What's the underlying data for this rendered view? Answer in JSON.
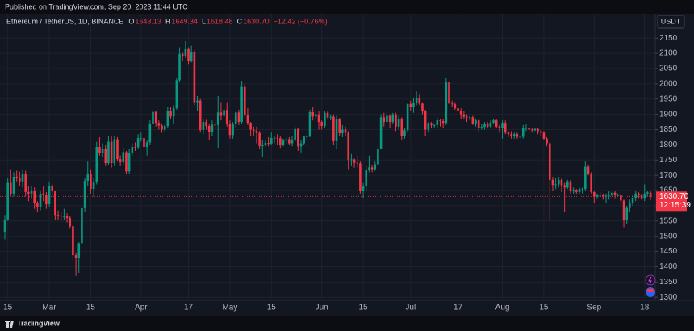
{
  "header": "Published on TradingView.com, Sep 20, 2023 11:44 UTC",
  "footer": "TradingView",
  "chart_data": {
    "type": "candlestick",
    "title": "Ethereum / TetherUS, 1D, BINANCE",
    "legend": [
      {
        "k": "O",
        "v": "1643.13"
      },
      {
        "k": "H",
        "v": "1649.34"
      },
      {
        "k": "L",
        "v": "1618.48"
      },
      {
        "k": "C",
        "v": "1630.70"
      }
    ],
    "change": "−12.42 (−0.76%)",
    "currency": "USDT",
    "last_price": "1630.70",
    "countdown": "12:15:39",
    "up_color": "#089981",
    "down_color": "#f23645",
    "grid": true,
    "ylim": [
      1290,
      2230
    ],
    "yticks": [
      1300,
      1350,
      1400,
      1450,
      1500,
      1550,
      1600,
      1650,
      1700,
      1750,
      1800,
      1850,
      1900,
      1950,
      2000,
      2050,
      2100,
      2150
    ],
    "categories": [
      null,
      "15",
      null,
      null,
      null,
      null,
      null,
      null,
      null,
      null,
      null,
      null,
      null,
      null,
      null,
      "Mar",
      null,
      null,
      null,
      null,
      null,
      null,
      null,
      null,
      null,
      null,
      null,
      null,
      null,
      "15",
      null,
      null,
      null,
      null,
      null,
      null,
      null,
      null,
      null,
      null,
      null,
      null,
      null,
      null,
      null,
      null,
      "Apr",
      null,
      null,
      null,
      null,
      null,
      null,
      null,
      null,
      null,
      null,
      null,
      null,
      null,
      null,
      null,
      "17",
      null,
      null,
      null,
      null,
      null,
      null,
      null,
      null,
      null,
      null,
      null,
      null,
      null,
      "May",
      null,
      null,
      null,
      null,
      null,
      null,
      null,
      null,
      null,
      null,
      null,
      null,
      null,
      "15",
      null,
      null,
      null,
      null,
      null,
      null,
      null,
      null,
      null,
      null,
      null,
      null,
      null,
      null,
      null,
      null,
      "Jun",
      null,
      null,
      null,
      null,
      null,
      null,
      null,
      null,
      null,
      null,
      null,
      null,
      null,
      "15",
      null,
      null,
      null,
      null,
      null,
      null,
      null,
      null,
      null,
      null,
      null,
      null,
      null,
      null,
      null,
      "Jul",
      null,
      null,
      null,
      null,
      null,
      null,
      null,
      null,
      null,
      null,
      null,
      null,
      null,
      null,
      null,
      "17",
      null,
      null,
      null,
      null,
      null,
      null,
      null,
      null,
      null,
      null,
      null,
      null,
      null,
      null,
      "Aug",
      null,
      null,
      null,
      null,
      null,
      null,
      null,
      null,
      null,
      null,
      null,
      null,
      null,
      "15",
      null,
      null,
      null,
      null,
      null,
      null,
      null,
      null,
      null,
      null,
      null,
      null,
      null,
      null,
      null,
      null,
      "Sep",
      null,
      null,
      null,
      null,
      null,
      null,
      null,
      null,
      null,
      null,
      null,
      null,
      null,
      null,
      null,
      null,
      "18",
      null,
      null
    ],
    "ohlc": [
      [
        1515,
        1570,
        1490,
        1555
      ],
      [
        1555,
        1690,
        1550,
        1675
      ],
      [
        1675,
        1720,
        1630,
        1640
      ],
      [
        1640,
        1710,
        1630,
        1695
      ],
      [
        1695,
        1715,
        1680,
        1690
      ],
      [
        1690,
        1712,
        1665,
        1680
      ],
      [
        1680,
        1720,
        1660,
        1705
      ],
      [
        1705,
        1715,
        1630,
        1645
      ],
      [
        1645,
        1665,
        1615,
        1640
      ],
      [
        1640,
        1665,
        1625,
        1650
      ],
      [
        1650,
        1660,
        1590,
        1608
      ],
      [
        1608,
        1615,
        1580,
        1595
      ],
      [
        1595,
        1650,
        1585,
        1640
      ],
      [
        1640,
        1665,
        1615,
        1635
      ],
      [
        1635,
        1645,
        1590,
        1605
      ],
      [
        1605,
        1680,
        1595,
        1664
      ],
      [
        1664,
        1672,
        1630,
        1648
      ],
      [
        1648,
        1650,
        1555,
        1570
      ],
      [
        1570,
        1585,
        1555,
        1567
      ],
      [
        1567,
        1580,
        1555,
        1565
      ],
      [
        1565,
        1590,
        1555,
        1565
      ],
      [
        1565,
        1575,
        1545,
        1560
      ],
      [
        1560,
        1568,
        1525,
        1533
      ],
      [
        1533,
        1540,
        1420,
        1438
      ],
      [
        1438,
        1445,
        1370,
        1430
      ],
      [
        1430,
        1480,
        1380,
        1477
      ],
      [
        1477,
        1600,
        1470,
        1592
      ],
      [
        1592,
        1690,
        1580,
        1682
      ],
      [
        1682,
        1745,
        1665,
        1706
      ],
      [
        1706,
        1720,
        1640,
        1655
      ],
      [
        1655,
        1690,
        1630,
        1677
      ],
      [
        1677,
        1810,
        1670,
        1793
      ],
      [
        1793,
        1825,
        1765,
        1772
      ],
      [
        1772,
        1805,
        1760,
        1788
      ],
      [
        1788,
        1800,
        1730,
        1740
      ],
      [
        1740,
        1830,
        1735,
        1810
      ],
      [
        1810,
        1830,
        1725,
        1740
      ],
      [
        1740,
        1830,
        1730,
        1818
      ],
      [
        1818,
        1825,
        1745,
        1753
      ],
      [
        1753,
        1765,
        1730,
        1743
      ],
      [
        1743,
        1790,
        1735,
        1776
      ],
      [
        1776,
        1780,
        1705,
        1713
      ],
      [
        1713,
        1785,
        1705,
        1774
      ],
      [
        1774,
        1805,
        1765,
        1793
      ],
      [
        1793,
        1808,
        1780,
        1792
      ],
      [
        1792,
        1835,
        1785,
        1822
      ],
      [
        1822,
        1840,
        1810,
        1822
      ],
      [
        1822,
        1828,
        1785,
        1793
      ],
      [
        1793,
        1815,
        1765,
        1808
      ],
      [
        1808,
        1880,
        1800,
        1868
      ],
      [
        1868,
        1920,
        1860,
        1908
      ],
      [
        1908,
        1912,
        1860,
        1872
      ],
      [
        1872,
        1880,
        1850,
        1863
      ],
      [
        1863,
        1870,
        1840,
        1850
      ],
      [
        1850,
        1870,
        1842,
        1862
      ],
      [
        1862,
        1925,
        1855,
        1912
      ],
      [
        1912,
        1925,
        1885,
        1893
      ],
      [
        1893,
        1930,
        1870,
        1920
      ],
      [
        1920,
        2020,
        1915,
        2012
      ],
      [
        2012,
        2120,
        2005,
        2098
      ],
      [
        2098,
        2105,
        2075,
        2092
      ],
      [
        2092,
        2140,
        2085,
        2114
      ],
      [
        2114,
        2120,
        2065,
        2075
      ],
      [
        2075,
        2125,
        2070,
        2103
      ],
      [
        2103,
        2110,
        1930,
        1940
      ],
      [
        1940,
        1960,
        1910,
        1945
      ],
      [
        1945,
        1950,
        1840,
        1849
      ],
      [
        1849,
        1885,
        1835,
        1875
      ],
      [
        1875,
        1882,
        1850,
        1862
      ],
      [
        1862,
        1870,
        1815,
        1841
      ],
      [
        1841,
        1880,
        1830,
        1866
      ],
      [
        1866,
        1880,
        1850,
        1865
      ],
      [
        1865,
        1960,
        1790,
        1906
      ],
      [
        1906,
        1940,
        1880,
        1895
      ],
      [
        1895,
        1920,
        1885,
        1914
      ],
      [
        1914,
        1940,
        1860,
        1870
      ],
      [
        1870,
        1880,
        1820,
        1832
      ],
      [
        1832,
        1875,
        1820,
        1870
      ],
      [
        1870,
        1910,
        1855,
        1906
      ],
      [
        1906,
        1915,
        1865,
        1875
      ],
      [
        1875,
        2010,
        1870,
        1990
      ],
      [
        1990,
        2000,
        1890,
        1897
      ],
      [
        1897,
        1920,
        1865,
        1872
      ],
      [
        1872,
        1875,
        1830,
        1850
      ],
      [
        1850,
        1860,
        1830,
        1846
      ],
      [
        1846,
        1860,
        1805,
        1839
      ],
      [
        1839,
        1845,
        1785,
        1796
      ],
      [
        1796,
        1815,
        1760,
        1801
      ],
      [
        1801,
        1815,
        1795,
        1806
      ],
      [
        1806,
        1825,
        1795,
        1804
      ],
      [
        1804,
        1840,
        1800,
        1822
      ],
      [
        1822,
        1830,
        1805,
        1823
      ],
      [
        1823,
        1835,
        1800,
        1822
      ],
      [
        1822,
        1828,
        1790,
        1800
      ],
      [
        1800,
        1820,
        1795,
        1814
      ],
      [
        1814,
        1825,
        1805,
        1818
      ],
      [
        1818,
        1825,
        1800,
        1805
      ],
      [
        1805,
        1830,
        1795,
        1817
      ],
      [
        1817,
        1860,
        1810,
        1852
      ],
      [
        1852,
        1855,
        1780,
        1795
      ],
      [
        1795,
        1815,
        1775,
        1805
      ],
      [
        1805,
        1830,
        1800,
        1827
      ],
      [
        1827,
        1835,
        1815,
        1827
      ],
      [
        1827,
        1915,
        1825,
        1907
      ],
      [
        1907,
        1925,
        1880,
        1893
      ],
      [
        1893,
        1915,
        1885,
        1900
      ],
      [
        1900,
        1910,
        1850,
        1875
      ],
      [
        1875,
        1880,
        1850,
        1862
      ],
      [
        1862,
        1910,
        1855,
        1905
      ],
      [
        1905,
        1910,
        1885,
        1890
      ],
      [
        1890,
        1900,
        1880,
        1892
      ],
      [
        1892,
        1900,
        1800,
        1812
      ],
      [
        1812,
        1895,
        1785,
        1883
      ],
      [
        1883,
        1888,
        1830,
        1838
      ],
      [
        1838,
        1865,
        1825,
        1850
      ],
      [
        1850,
        1860,
        1830,
        1840
      ],
      [
        1840,
        1845,
        1720,
        1750
      ],
      [
        1750,
        1770,
        1730,
        1752
      ],
      [
        1752,
        1755,
        1725,
        1741
      ],
      [
        1741,
        1765,
        1725,
        1739
      ],
      [
        1739,
        1745,
        1640,
        1650
      ],
      [
        1650,
        1675,
        1626,
        1665
      ],
      [
        1665,
        1730,
        1650,
        1718
      ],
      [
        1718,
        1765,
        1710,
        1726
      ],
      [
        1726,
        1735,
        1710,
        1720
      ],
      [
        1720,
        1745,
        1715,
        1736
      ],
      [
        1736,
        1795,
        1730,
        1788
      ],
      [
        1788,
        1900,
        1785,
        1890
      ],
      [
        1890,
        1905,
        1860,
        1875
      ],
      [
        1875,
        1915,
        1865,
        1895
      ],
      [
        1895,
        1900,
        1855,
        1875
      ],
      [
        1875,
        1905,
        1870,
        1900
      ],
      [
        1900,
        1905,
        1845,
        1860
      ],
      [
        1860,
        1895,
        1850,
        1886
      ],
      [
        1886,
        1890,
        1815,
        1828
      ],
      [
        1828,
        1855,
        1820,
        1848
      ],
      [
        1848,
        1935,
        1840,
        1934
      ],
      [
        1934,
        1945,
        1910,
        1925
      ],
      [
        1925,
        1955,
        1905,
        1938
      ],
      [
        1938,
        1975,
        1930,
        1955
      ],
      [
        1955,
        1965,
        1930,
        1935
      ],
      [
        1935,
        1940,
        1900,
        1910
      ],
      [
        1910,
        1915,
        1830,
        1850
      ],
      [
        1850,
        1875,
        1840,
        1871
      ],
      [
        1871,
        1875,
        1855,
        1865
      ],
      [
        1865,
        1870,
        1855,
        1865
      ],
      [
        1865,
        1890,
        1855,
        1880
      ],
      [
        1880,
        1885,
        1860,
        1878
      ],
      [
        1878,
        1885,
        1855,
        1872
      ],
      [
        1872,
        2020,
        1865,
        2005
      ],
      [
        2005,
        2030,
        1925,
        1935
      ],
      [
        1935,
        1945,
        1925,
        1933
      ],
      [
        1933,
        1940,
        1915,
        1920
      ],
      [
        1920,
        1925,
        1880,
        1910
      ],
      [
        1910,
        1920,
        1885,
        1900
      ],
      [
        1900,
        1910,
        1885,
        1892
      ],
      [
        1892,
        1900,
        1875,
        1890
      ],
      [
        1890,
        1895,
        1880,
        1890
      ],
      [
        1890,
        1895,
        1865,
        1870
      ],
      [
        1870,
        1885,
        1860,
        1880
      ],
      [
        1880,
        1885,
        1845,
        1855
      ],
      [
        1855,
        1870,
        1850,
        1859
      ],
      [
        1859,
        1875,
        1850,
        1870
      ],
      [
        1870,
        1875,
        1855,
        1860
      ],
      [
        1860,
        1880,
        1855,
        1873
      ],
      [
        1873,
        1885,
        1868,
        1880
      ],
      [
        1880,
        1885,
        1855,
        1860
      ],
      [
        1860,
        1865,
        1840,
        1856
      ],
      [
        1856,
        1880,
        1820,
        1872
      ],
      [
        1872,
        1880,
        1835,
        1840
      ],
      [
        1840,
        1845,
        1825,
        1835
      ],
      [
        1835,
        1845,
        1820,
        1829
      ],
      [
        1829,
        1840,
        1820,
        1835
      ],
      [
        1835,
        1840,
        1820,
        1826
      ],
      [
        1826,
        1835,
        1805,
        1826
      ],
      [
        1826,
        1865,
        1820,
        1855
      ],
      [
        1855,
        1870,
        1845,
        1855
      ],
      [
        1855,
        1860,
        1840,
        1850
      ],
      [
        1850,
        1855,
        1840,
        1848
      ],
      [
        1848,
        1855,
        1845,
        1852
      ],
      [
        1852,
        1855,
        1835,
        1845
      ],
      [
        1845,
        1850,
        1830,
        1840
      ],
      [
        1840,
        1845,
        1815,
        1820
      ],
      [
        1820,
        1825,
        1795,
        1805
      ],
      [
        1805,
        1810,
        1550,
        1685
      ],
      [
        1685,
        1695,
        1650,
        1668
      ],
      [
        1668,
        1690,
        1655,
        1670
      ],
      [
        1670,
        1695,
        1660,
        1685
      ],
      [
        1685,
        1690,
        1645,
        1667
      ],
      [
        1667,
        1675,
        1580,
        1660
      ],
      [
        1660,
        1685,
        1655,
        1680
      ],
      [
        1680,
        1685,
        1640,
        1650
      ],
      [
        1650,
        1660,
        1640,
        1652
      ],
      [
        1652,
        1655,
        1640,
        1645
      ],
      [
        1645,
        1660,
        1640,
        1655
      ],
      [
        1655,
        1660,
        1640,
        1655
      ],
      [
        1655,
        1745,
        1650,
        1728
      ],
      [
        1728,
        1735,
        1700,
        1705
      ],
      [
        1705,
        1710,
        1640,
        1645
      ],
      [
        1645,
        1650,
        1610,
        1630
      ],
      [
        1630,
        1640,
        1625,
        1635
      ],
      [
        1635,
        1645,
        1630,
        1635
      ],
      [
        1635,
        1640,
        1620,
        1630
      ],
      [
        1630,
        1640,
        1610,
        1633
      ],
      [
        1633,
        1650,
        1620,
        1633
      ],
      [
        1633,
        1650,
        1625,
        1643
      ],
      [
        1643,
        1648,
        1625,
        1635
      ],
      [
        1635,
        1640,
        1630,
        1635
      ],
      [
        1635,
        1640,
        1605,
        1617
      ],
      [
        1617,
        1620,
        1530,
        1553
      ],
      [
        1553,
        1600,
        1540,
        1593
      ],
      [
        1593,
        1620,
        1580,
        1608
      ],
      [
        1608,
        1635,
        1600,
        1626
      ],
      [
        1626,
        1650,
        1615,
        1640
      ],
      [
        1640,
        1645,
        1625,
        1635
      ],
      [
        1635,
        1640,
        1620,
        1625
      ],
      [
        1625,
        1670,
        1615,
        1640
      ],
      [
        1640,
        1650,
        1630,
        1644
      ],
      [
        1643.13,
        1649.34,
        1618.48,
        1630.7
      ]
    ]
  }
}
